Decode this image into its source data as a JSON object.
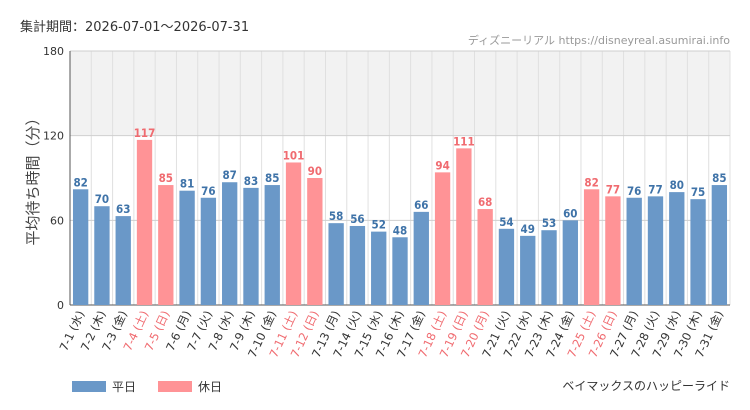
{
  "header": {
    "period": "集計期間：2026-07-01～2026-07-31",
    "source": "ディズニーリアル https://disneyreal.asumirai.info"
  },
  "footer": {
    "attraction": "ベイマックスのハッピーライド"
  },
  "colors": {
    "weekday": "#6a98c8",
    "holiday": "#ff9396",
    "weekday_label": "#3f73a8",
    "holiday_label": "#f06b70",
    "band": "#f2f2f2",
    "grid": "#e0e0e0"
  },
  "chart_data": {
    "type": "bar",
    "title": "",
    "ylabel": "平均待ち時間（分）",
    "xlabel": "",
    "ylim": [
      0,
      180
    ],
    "yticks": [
      0,
      60,
      120,
      180
    ],
    "grid": true,
    "legend_position": "bottom-left",
    "categories": [
      "7-1 (水)",
      "7-2 (木)",
      "7-3 (金)",
      "7-4 (土)",
      "7-5 (日)",
      "7-6 (月)",
      "7-7 (火)",
      "7-8 (水)",
      "7-9 (木)",
      "7-10 (金)",
      "7-11 (土)",
      "7-12 (日)",
      "7-13 (月)",
      "7-14 (火)",
      "7-15 (水)",
      "7-16 (木)",
      "7-17 (金)",
      "7-18 (土)",
      "7-19 (日)",
      "7-20 (月)",
      "7-21 (火)",
      "7-22 (水)",
      "7-23 (木)",
      "7-24 (金)",
      "7-25 (土)",
      "7-26 (日)",
      "7-27 (月)",
      "7-28 (火)",
      "7-29 (水)",
      "7-30 (木)",
      "7-31 (金)"
    ],
    "values": [
      82,
      70,
      63,
      117,
      85,
      81,
      76,
      87,
      83,
      85,
      101,
      90,
      58,
      56,
      52,
      48,
      66,
      94,
      111,
      68,
      54,
      49,
      53,
      60,
      82,
      77,
      76,
      77,
      80,
      75,
      85
    ],
    "day_type": [
      "平日",
      "平日",
      "平日",
      "休日",
      "休日",
      "平日",
      "平日",
      "平日",
      "平日",
      "平日",
      "休日",
      "休日",
      "平日",
      "平日",
      "平日",
      "平日",
      "平日",
      "休日",
      "休日",
      "休日",
      "平日",
      "平日",
      "平日",
      "平日",
      "休日",
      "休日",
      "平日",
      "平日",
      "平日",
      "平日",
      "平日"
    ],
    "series": [
      {
        "name": "平日",
        "color": "#6a98c8"
      },
      {
        "name": "休日",
        "color": "#ff9396"
      }
    ]
  }
}
